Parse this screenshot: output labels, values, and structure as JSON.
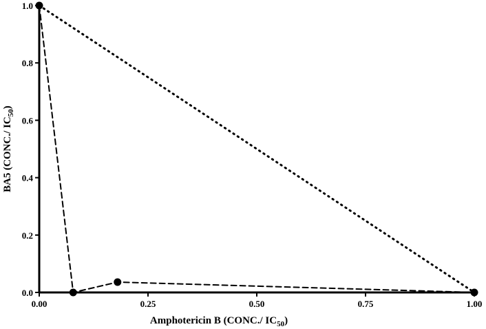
{
  "chart_data": {
    "type": "scatter",
    "title": "",
    "xlabel": "Amphotericin B (CONC./ IC",
    "xlabel_sub": "50",
    "xlabel_end": ")",
    "ylabel": "BA5 (CONC./ IC",
    "ylabel_sub": "50",
    "ylabel_end": ")",
    "xlim": [
      0,
      1
    ],
    "ylim": [
      0,
      1
    ],
    "x_ticks": [
      0,
      0.25,
      0.5,
      0.75,
      1
    ],
    "x_tick_labels": [
      "0.00",
      "0.25",
      "0.50",
      "0.75",
      "1.00"
    ],
    "y_ticks": [
      0,
      0.2,
      0.4,
      0.6,
      0.8,
      1
    ],
    "y_tick_labels": [
      "0.0",
      "0.2",
      "0.4",
      "0.6",
      "0.8",
      "1.0"
    ],
    "grid": false,
    "series": [
      {
        "style": "dashed",
        "markers": true,
        "color": "#000000",
        "x": [
          0.0,
          0.078,
          0.18,
          1.0
        ],
        "y": [
          1.0,
          0.0,
          0.036,
          0.0
        ]
      },
      {
        "style": "dotted",
        "markers": false,
        "color": "#000000",
        "x": [
          0.0,
          1.0
        ],
        "y": [
          1.0,
          0.0
        ]
      }
    ]
  }
}
